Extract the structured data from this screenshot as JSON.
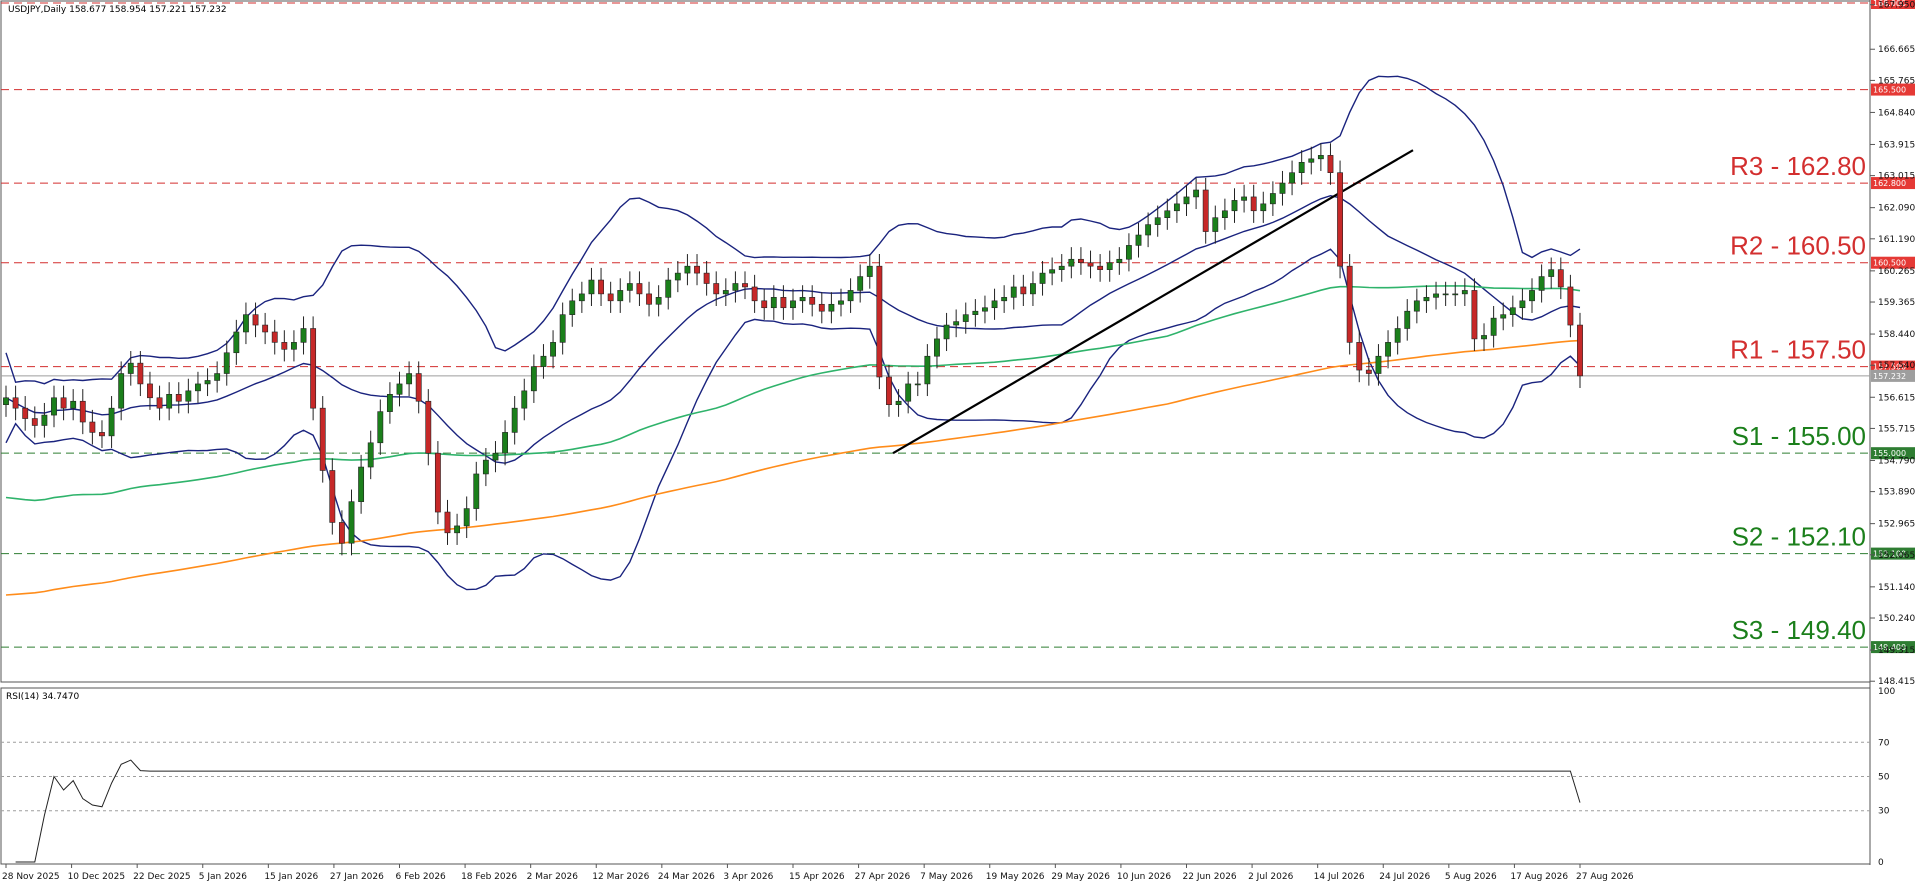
{
  "chart_data": [
    {
      "type": "candlestick",
      "header": "USDJPY,Daily  158.677 158.954 157.221 157.232",
      "ylim": [
        148.45,
        168.0
      ],
      "price_axis_ticks": [
        "167.950",
        "166.665",
        "165.765",
        "164.840",
        "163.915",
        "163.015",
        "162.090",
        "161.190",
        "160.265",
        "159.365",
        "158.440",
        "157.540",
        "156.615",
        "155.715",
        "154.790",
        "153.890",
        "152.965",
        "152.065",
        "151.140",
        "150.240",
        "149.315",
        "148.415"
      ],
      "x_tick_labels": [
        "28 Nov 2025",
        "10 Dec 2025",
        "22 Dec 2025",
        "5 Jan 2026",
        "15 Jan 2026",
        "27 Jan 2026",
        "6 Feb 2026",
        "18 Feb 2026",
        "2 Mar 2026",
        "12 Mar 2026",
        "24 Mar 2026",
        "3 Apr 2026",
        "15 Apr 2026",
        "27 Apr 2026",
        "7 May 2026",
        "19 May 2026",
        "29 May 2026",
        "10 Jun 2026",
        "22 Jun 2026",
        "2 Jul 2026",
        "14 Jul 2026",
        "24 Jul 2026",
        "5 Aug 2026",
        "17 Aug 2026",
        "27 Aug 2026"
      ],
      "current_price": 157.232,
      "current_price_label": "157.232",
      "levels": [
        {
          "price": 168.0,
          "tag": "168.000",
          "label": "",
          "kind": "resistance"
        },
        {
          "price": 165.5,
          "tag": "165.500",
          "label": "",
          "kind": "resistance"
        },
        {
          "price": 162.8,
          "tag": "162.800",
          "label": "R3 - 162.80",
          "kind": "resistance"
        },
        {
          "price": 160.5,
          "tag": "160.500",
          "label": "R2 - 160.50",
          "kind": "resistance"
        },
        {
          "price": 157.5,
          "tag": "157.500",
          "label": "R1 - 157.50",
          "kind": "resistance"
        },
        {
          "price": 155.0,
          "tag": "155.000",
          "label": "S1 - 155.00",
          "kind": "support"
        },
        {
          "price": 152.1,
          "tag": "152.100",
          "label": "S2 - 152.10",
          "kind": "support"
        },
        {
          "price": 149.4,
          "tag": "149.400",
          "label": "S3 - 149.40",
          "kind": "support"
        }
      ],
      "close_series": [
        156.6,
        156.3,
        156.0,
        155.8,
        156.1,
        156.6,
        156.3,
        156.5,
        155.9,
        155.6,
        155.5,
        156.3,
        157.3,
        157.6,
        157.0,
        156.6,
        156.3,
        156.7,
        156.5,
        156.8,
        157.0,
        157.1,
        157.3,
        157.9,
        158.5,
        159.0,
        158.7,
        158.5,
        158.2,
        158.0,
        158.2,
        158.6,
        156.3,
        154.5,
        153.0,
        152.4,
        153.6,
        154.6,
        155.3,
        156.2,
        156.7,
        157.0,
        157.3,
        156.5,
        155.0,
        153.3,
        152.7,
        152.9,
        153.4,
        154.4,
        154.8,
        155.0,
        155.6,
        156.3,
        156.8,
        157.5,
        157.8,
        158.2,
        159.0,
        159.4,
        159.6,
        160.0,
        159.6,
        159.4,
        159.7,
        159.9,
        159.6,
        159.3,
        159.5,
        160.0,
        160.2,
        160.4,
        160.2,
        159.9,
        159.6,
        159.7,
        159.9,
        159.8,
        159.4,
        159.2,
        159.5,
        159.2,
        159.4,
        159.5,
        159.3,
        159.1,
        159.3,
        159.4,
        159.7,
        160.1,
        160.4,
        157.2,
        156.4,
        156.5,
        157.0,
        157.0,
        157.8,
        158.3,
        158.7,
        158.8,
        159.0,
        159.1,
        159.2,
        159.4,
        159.5,
        159.8,
        159.6,
        159.9,
        160.2,
        160.3,
        160.4,
        160.6,
        160.5,
        160.4,
        160.3,
        160.5,
        160.6,
        161.0,
        161.3,
        161.6,
        161.8,
        162.0,
        162.2,
        162.4,
        162.6,
        161.4,
        161.8,
        162.0,
        162.3,
        162.4,
        162.0,
        162.2,
        162.5,
        162.8,
        163.1,
        163.4,
        163.5,
        163.6,
        163.1,
        160.4,
        158.2,
        157.4,
        157.3,
        157.8,
        158.2,
        158.6,
        159.1,
        159.4,
        159.5,
        159.6,
        159.6,
        159.6,
        159.7,
        158.3,
        158.4,
        158.9,
        159.0,
        159.2,
        159.4,
        159.7,
        160.1,
        160.3,
        159.8,
        158.7,
        157.232
      ],
      "sma_green_start_end": [
        151.8,
        159.7
      ],
      "sma_orange_start_end": [
        149.9,
        158.0
      ],
      "rsi": {
        "label": "RSI(14) 34.7470",
        "period": 14,
        "current": 34.747,
        "levels": [
          70,
          50,
          30
        ],
        "axis_ticks": [
          "100",
          "70",
          "50",
          "30",
          "0"
        ]
      }
    }
  ]
}
